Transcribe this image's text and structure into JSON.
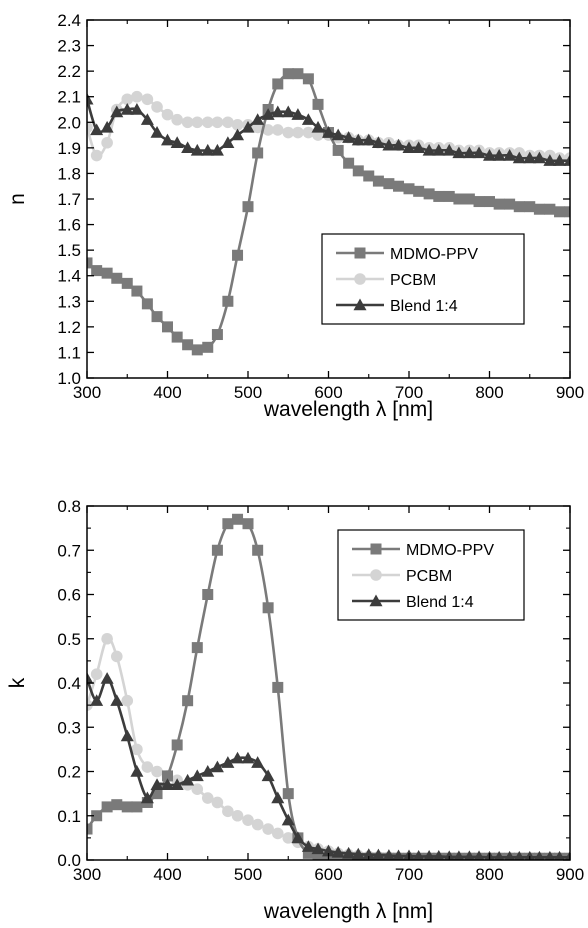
{
  "chart_data": [
    {
      "type": "line",
      "title": "",
      "xlabel": "wavelength λ [nm]",
      "ylabel": "n",
      "xlim": [
        300,
        900
      ],
      "ylim": [
        1.0,
        2.4
      ],
      "xticks": [
        "300",
        "400",
        "500",
        "600",
        "700",
        "800",
        "900"
      ],
      "yticks": [
        "1.0",
        "1.1",
        "1.2",
        "1.3",
        "1.4",
        "1.5",
        "1.6",
        "1.7",
        "1.8",
        "1.9",
        "2.0",
        "2.1",
        "2.2",
        "2.3",
        "2.4"
      ],
      "grid": false,
      "legend": "center-right",
      "series": [
        {
          "name": "MDMO-PPV",
          "color": "#7a7a7a",
          "marker": "square",
          "x": [
            300,
            312,
            325,
            337,
            350,
            362,
            375,
            387,
            400,
            412,
            425,
            437,
            450,
            462,
            475,
            487,
            500,
            512,
            525,
            537,
            550,
            562,
            575,
            587,
            600,
            612,
            625,
            637,
            650,
            662,
            675,
            687,
            700,
            712,
            725,
            737,
            750,
            762,
            775,
            787,
            800,
            812,
            825,
            837,
            850,
            862,
            875,
            887,
            900
          ],
          "y": [
            1.45,
            1.42,
            1.41,
            1.39,
            1.37,
            1.34,
            1.29,
            1.24,
            1.2,
            1.16,
            1.13,
            1.11,
            1.12,
            1.17,
            1.3,
            1.48,
            1.67,
            1.88,
            2.05,
            2.15,
            2.19,
            2.19,
            2.17,
            2.07,
            1.96,
            1.89,
            1.84,
            1.81,
            1.79,
            1.77,
            1.76,
            1.75,
            1.74,
            1.73,
            1.72,
            1.71,
            1.71,
            1.7,
            1.7,
            1.69,
            1.69,
            1.68,
            1.68,
            1.67,
            1.67,
            1.66,
            1.66,
            1.65,
            1.65
          ]
        },
        {
          "name": "PCBM",
          "color": "#d4d4d4",
          "marker": "circle",
          "x": [
            300,
            312,
            325,
            337,
            350,
            362,
            375,
            387,
            400,
            412,
            425,
            437,
            450,
            462,
            475,
            487,
            500,
            512,
            525,
            537,
            550,
            562,
            575,
            587,
            600,
            612,
            625,
            637,
            650,
            662,
            675,
            687,
            700,
            712,
            725,
            737,
            750,
            762,
            775,
            787,
            800,
            812,
            825,
            837,
            850,
            862,
            875,
            887,
            900
          ],
          "y": [
            1.98,
            1.87,
            1.92,
            2.05,
            2.09,
            2.1,
            2.09,
            2.06,
            2.03,
            2.01,
            2.0,
            2.0,
            2.0,
            2.0,
            2.0,
            1.99,
            1.99,
            1.98,
            1.97,
            1.97,
            1.96,
            1.96,
            1.96,
            1.95,
            1.95,
            1.94,
            1.94,
            1.93,
            1.93,
            1.92,
            1.92,
            1.91,
            1.91,
            1.91,
            1.9,
            1.9,
            1.9,
            1.89,
            1.89,
            1.89,
            1.88,
            1.88,
            1.88,
            1.88,
            1.87,
            1.87,
            1.87,
            1.86,
            1.86
          ]
        },
        {
          "name": "Blend 1:4",
          "color": "#3c3c3c",
          "marker": "triangle",
          "x": [
            300,
            312,
            325,
            337,
            350,
            362,
            375,
            387,
            400,
            412,
            425,
            437,
            450,
            462,
            475,
            487,
            500,
            512,
            525,
            537,
            550,
            562,
            575,
            587,
            600,
            612,
            625,
            637,
            650,
            662,
            675,
            687,
            700,
            712,
            725,
            737,
            750,
            762,
            775,
            787,
            800,
            812,
            825,
            837,
            850,
            862,
            875,
            887,
            900
          ],
          "y": [
            2.09,
            1.97,
            1.98,
            2.04,
            2.05,
            2.05,
            2.01,
            1.96,
            1.93,
            1.92,
            1.9,
            1.89,
            1.89,
            1.89,
            1.92,
            1.95,
            1.98,
            2.01,
            2.03,
            2.04,
            2.04,
            2.03,
            2.01,
            1.98,
            1.96,
            1.95,
            1.94,
            1.93,
            1.93,
            1.92,
            1.91,
            1.91,
            1.9,
            1.9,
            1.89,
            1.89,
            1.89,
            1.88,
            1.88,
            1.88,
            1.87,
            1.87,
            1.87,
            1.86,
            1.86,
            1.86,
            1.85,
            1.85,
            1.85
          ]
        }
      ]
    },
    {
      "type": "line",
      "title": "",
      "xlabel": "wavelength λ [nm]",
      "ylabel": "k",
      "xlim": [
        300,
        900
      ],
      "ylim": [
        0.0,
        0.8
      ],
      "xticks": [
        "300",
        "400",
        "500",
        "600",
        "700",
        "800",
        "900"
      ],
      "yticks": [
        "0.0",
        "0.1",
        "0.2",
        "0.3",
        "0.4",
        "0.5",
        "0.6",
        "0.7",
        "0.8"
      ],
      "grid": false,
      "legend": "top-right",
      "series": [
        {
          "name": "MDMO-PPV",
          "color": "#7a7a7a",
          "marker": "square",
          "x": [
            300,
            312,
            325,
            337,
            350,
            362,
            375,
            387,
            400,
            412,
            425,
            437,
            450,
            462,
            475,
            487,
            500,
            512,
            525,
            537,
            550,
            562,
            575,
            587,
            600,
            612,
            625,
            637,
            650,
            662,
            675,
            687,
            700,
            712,
            725,
            737,
            750,
            762,
            775,
            787,
            800,
            812,
            825,
            837,
            850,
            862,
            875,
            887,
            900
          ],
          "y": [
            0.07,
            0.1,
            0.12,
            0.125,
            0.12,
            0.12,
            0.13,
            0.15,
            0.19,
            0.26,
            0.36,
            0.48,
            0.6,
            0.7,
            0.76,
            0.77,
            0.76,
            0.7,
            0.57,
            0.39,
            0.15,
            0.05,
            0.015,
            0.005,
            0.004,
            0.004,
            0.004,
            0.004,
            0.004,
            0.004,
            0.004,
            0.004,
            0.004,
            0.004,
            0.004,
            0.004,
            0.004,
            0.004,
            0.004,
            0.004,
            0.004,
            0.004,
            0.004,
            0.004,
            0.004,
            0.004,
            0.004,
            0.004,
            0.004
          ]
        },
        {
          "name": "PCBM",
          "color": "#d4d4d4",
          "marker": "circle",
          "x": [
            300,
            312,
            325,
            337,
            350,
            362,
            375,
            387,
            400,
            412,
            425,
            437,
            450,
            462,
            475,
            487,
            500,
            512,
            525,
            537,
            550,
            562,
            575,
            587,
            600,
            612,
            625,
            637,
            650,
            662,
            675,
            687,
            700,
            712,
            725,
            737,
            750,
            762,
            775,
            787,
            800,
            812,
            825,
            837,
            850,
            862,
            875,
            887,
            900
          ],
          "y": [
            0.35,
            0.42,
            0.5,
            0.46,
            0.36,
            0.25,
            0.21,
            0.2,
            0.19,
            0.18,
            0.17,
            0.16,
            0.14,
            0.13,
            0.11,
            0.1,
            0.09,
            0.08,
            0.07,
            0.06,
            0.05,
            0.04,
            0.03,
            0.025,
            0.02,
            0.015,
            0.012,
            0.01,
            0.008,
            0.007,
            0.006,
            0.005,
            0.005,
            0.004,
            0.004,
            0.004,
            0.004,
            0.004,
            0.004,
            0.004,
            0.004,
            0.004,
            0.004,
            0.004,
            0.004,
            0.004,
            0.004,
            0.004,
            0.004
          ]
        },
        {
          "name": "Blend 1:4",
          "color": "#3c3c3c",
          "marker": "triangle",
          "x": [
            300,
            312,
            325,
            337,
            350,
            362,
            375,
            387,
            400,
            412,
            425,
            437,
            450,
            462,
            475,
            487,
            500,
            512,
            525,
            537,
            550,
            562,
            575,
            587,
            600,
            612,
            625,
            637,
            650,
            662,
            675,
            687,
            700,
            712,
            725,
            737,
            750,
            762,
            775,
            787,
            800,
            812,
            825,
            837,
            850,
            862,
            875,
            887,
            900
          ],
          "y": [
            0.41,
            0.36,
            0.41,
            0.36,
            0.28,
            0.2,
            0.14,
            0.17,
            0.17,
            0.17,
            0.18,
            0.19,
            0.2,
            0.21,
            0.22,
            0.23,
            0.23,
            0.22,
            0.19,
            0.14,
            0.09,
            0.05,
            0.03,
            0.025,
            0.02,
            0.017,
            0.015,
            0.013,
            0.012,
            0.011,
            0.01,
            0.009,
            0.009,
            0.008,
            0.008,
            0.008,
            0.007,
            0.007,
            0.007,
            0.007,
            0.006,
            0.006,
            0.006,
            0.006,
            0.006,
            0.006,
            0.006,
            0.006,
            0.006
          ]
        }
      ]
    }
  ]
}
